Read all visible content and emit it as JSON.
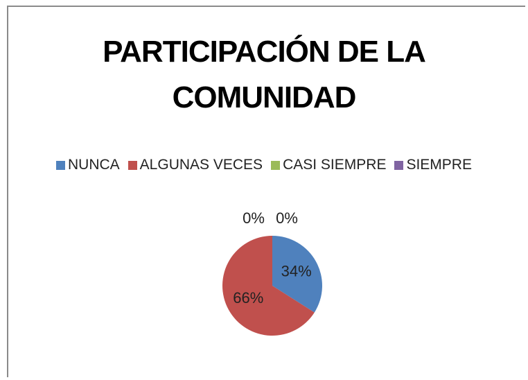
{
  "chart_data": {
    "type": "pie",
    "title": "PARTICIPACIÓN DE LA COMUNIDAD",
    "categories": [
      "NUNCA",
      "ALGUNAS VECES",
      "CASI SIEMPRE",
      "SIEMPRE"
    ],
    "values": [
      34,
      66,
      0,
      0
    ],
    "value_labels": [
      "34%",
      "66%",
      "0%",
      "0%"
    ],
    "colors": [
      "#4f81bd",
      "#c0504d",
      "#9bbb59",
      "#8064a2"
    ],
    "legend": "top"
  }
}
